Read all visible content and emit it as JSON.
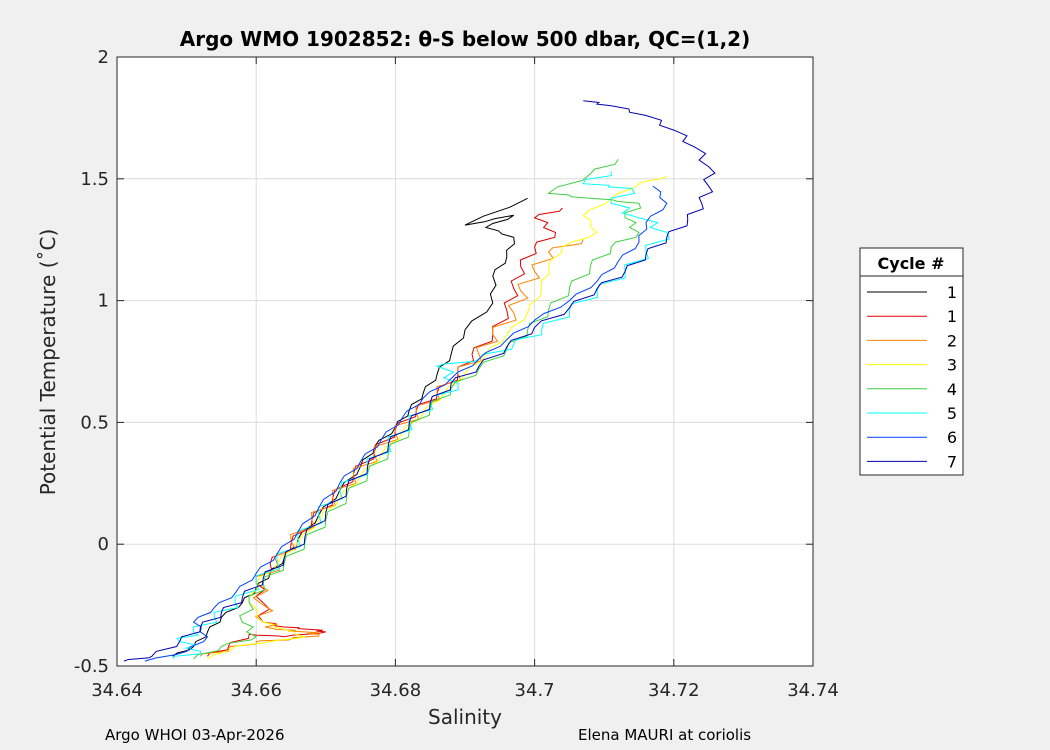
{
  "chart_data": {
    "type": "line",
    "title": "Argo WMO 1902852: θ-S below 500 dbar,  QC=(1,2)",
    "xlabel": "Salinity",
    "ylabel": "Potential Temperature (˚C)",
    "xlim": [
      34.64,
      34.74
    ],
    "ylim": [
      -0.5,
      2
    ],
    "xticks": [
      "34.64",
      "34.66",
      "34.68",
      "34.7",
      "34.72",
      "34.74"
    ],
    "yticks": [
      "-0.5",
      "0",
      "0.5",
      "1",
      "1.5",
      "2"
    ],
    "grid": true,
    "legend": {
      "title": "Cycle #",
      "placement": "right"
    },
    "series": [
      {
        "name": "1",
        "color": "#000000",
        "points": [
          [
            34.699,
            1.42
          ],
          [
            34.69,
            1.31
          ],
          [
            34.697,
            1.35
          ],
          [
            34.693,
            1.3
          ],
          [
            34.697,
            1.26
          ],
          [
            34.696,
            1.18
          ],
          [
            34.694,
            1.1
          ],
          [
            34.694,
            0.99
          ],
          [
            34.69,
            0.88
          ],
          [
            34.688,
            0.78
          ],
          [
            34.686,
            0.7
          ],
          [
            34.684,
            0.62
          ],
          [
            34.682,
            0.55
          ],
          [
            34.68,
            0.48
          ],
          [
            34.677,
            0.4
          ],
          [
            34.675,
            0.32
          ],
          [
            34.672,
            0.22
          ],
          [
            34.669,
            0.12
          ],
          [
            34.666,
            0.02
          ],
          [
            34.664,
            -0.06
          ],
          [
            34.662,
            -0.12
          ],
          [
            34.66,
            -0.18
          ],
          [
            34.658,
            -0.24
          ],
          [
            34.655,
            -0.3
          ],
          [
            34.653,
            -0.36
          ],
          [
            34.651,
            -0.42
          ],
          [
            34.648,
            -0.46
          ]
        ]
      },
      {
        "name": "1",
        "color": "#e00000",
        "points": [
          [
            34.704,
            1.38
          ],
          [
            34.7,
            1.34
          ],
          [
            34.703,
            1.28
          ],
          [
            34.7,
            1.22
          ],
          [
            34.698,
            1.14
          ],
          [
            34.697,
            1.05
          ],
          [
            34.696,
            0.96
          ],
          [
            34.694,
            0.86
          ],
          [
            34.691,
            0.78
          ],
          [
            34.689,
            0.7
          ],
          [
            34.686,
            0.62
          ],
          [
            34.683,
            0.55
          ],
          [
            34.68,
            0.47
          ],
          [
            34.677,
            0.38
          ],
          [
            34.674,
            0.29
          ],
          [
            34.671,
            0.19
          ],
          [
            34.668,
            0.1
          ],
          [
            34.665,
            0.0
          ],
          [
            34.662,
            -0.08
          ],
          [
            34.66,
            -0.16
          ],
          [
            34.661,
            -0.24
          ],
          [
            34.661,
            -0.32
          ],
          [
            34.664,
            -0.34
          ],
          [
            34.668,
            -0.35
          ],
          [
            34.67,
            -0.36
          ],
          [
            34.664,
            -0.38
          ],
          [
            34.659,
            -0.37
          ],
          [
            34.656,
            -0.42
          ],
          [
            34.653,
            -0.46
          ]
        ]
      },
      {
        "name": "2",
        "color": "#ff8000",
        "points": [
          [
            34.707,
            1.25
          ],
          [
            34.702,
            1.2
          ],
          [
            34.7,
            1.12
          ],
          [
            34.698,
            1.04
          ],
          [
            34.697,
            0.95
          ],
          [
            34.694,
            0.86
          ],
          [
            34.692,
            0.78
          ],
          [
            34.689,
            0.7
          ],
          [
            34.686,
            0.62
          ],
          [
            34.683,
            0.54
          ],
          [
            34.68,
            0.46
          ],
          [
            34.677,
            0.37
          ],
          [
            34.674,
            0.28
          ],
          [
            34.671,
            0.19
          ],
          [
            34.668,
            0.1
          ],
          [
            34.665,
            0.01
          ],
          [
            34.663,
            -0.08
          ],
          [
            34.66,
            -0.16
          ],
          [
            34.661,
            -0.25
          ],
          [
            34.661,
            -0.32
          ],
          [
            34.663,
            -0.35
          ],
          [
            34.667,
            -0.36
          ],
          [
            34.669,
            -0.37
          ],
          [
            34.665,
            -0.39
          ],
          [
            34.66,
            -0.4
          ],
          [
            34.656,
            -0.43
          ],
          [
            34.652,
            -0.46
          ]
        ]
      },
      {
        "name": "3",
        "color": "#ffff00",
        "points": [
          [
            34.719,
            1.51
          ],
          [
            34.715,
            1.48
          ],
          [
            34.711,
            1.42
          ],
          [
            34.707,
            1.35
          ],
          [
            34.709,
            1.28
          ],
          [
            34.704,
            1.22
          ],
          [
            34.702,
            1.14
          ],
          [
            34.701,
            1.05
          ],
          [
            34.699,
            0.95
          ],
          [
            34.696,
            0.86
          ],
          [
            34.693,
            0.78
          ],
          [
            34.69,
            0.7
          ],
          [
            34.687,
            0.62
          ],
          [
            34.684,
            0.54
          ],
          [
            34.681,
            0.46
          ],
          [
            34.678,
            0.37
          ],
          [
            34.675,
            0.28
          ],
          [
            34.672,
            0.19
          ],
          [
            34.669,
            0.1
          ],
          [
            34.666,
            0.01
          ],
          [
            34.663,
            -0.08
          ],
          [
            34.66,
            -0.16
          ],
          [
            34.659,
            -0.24
          ],
          [
            34.661,
            -0.32
          ],
          [
            34.664,
            -0.35
          ],
          [
            34.667,
            -0.38
          ],
          [
            34.662,
            -0.4
          ],
          [
            34.657,
            -0.42
          ],
          [
            34.653,
            -0.47
          ]
        ]
      },
      {
        "name": "4",
        "color": "#40d040",
        "points": [
          [
            34.712,
            1.58
          ],
          [
            34.708,
            1.52
          ],
          [
            34.702,
            1.44
          ],
          [
            34.708,
            1.42
          ],
          [
            34.715,
            1.4
          ],
          [
            34.713,
            1.34
          ],
          [
            34.715,
            1.28
          ],
          [
            34.711,
            1.22
          ],
          [
            34.708,
            1.14
          ],
          [
            34.705,
            1.05
          ],
          [
            34.702,
            0.96
          ],
          [
            34.699,
            0.88
          ],
          [
            34.696,
            0.8
          ],
          [
            34.692,
            0.72
          ],
          [
            34.688,
            0.64
          ],
          [
            34.685,
            0.56
          ],
          [
            34.682,
            0.47
          ],
          [
            34.679,
            0.38
          ],
          [
            34.676,
            0.29
          ],
          [
            34.673,
            0.2
          ],
          [
            34.67,
            0.1
          ],
          [
            34.667,
            0.01
          ],
          [
            34.664,
            -0.08
          ],
          [
            34.661,
            -0.16
          ],
          [
            34.659,
            -0.24
          ],
          [
            34.658,
            -0.32
          ],
          [
            34.66,
            -0.38
          ],
          [
            34.655,
            -0.42
          ],
          [
            34.651,
            -0.47
          ]
        ]
      },
      {
        "name": "5",
        "color": "#00ffff",
        "points": [
          [
            34.711,
            1.53
          ],
          [
            34.707,
            1.48
          ],
          [
            34.714,
            1.46
          ],
          [
            34.711,
            1.4
          ],
          [
            34.715,
            1.34
          ],
          [
            34.719,
            1.28
          ],
          [
            34.716,
            1.2
          ],
          [
            34.713,
            1.12
          ],
          [
            34.709,
            1.04
          ],
          [
            34.705,
            0.96
          ],
          [
            34.701,
            0.88
          ],
          [
            34.697,
            0.82
          ],
          [
            34.692,
            0.76
          ],
          [
            34.686,
            0.73
          ],
          [
            34.689,
            0.66
          ],
          [
            34.685,
            0.58
          ],
          [
            34.682,
            0.5
          ],
          [
            34.679,
            0.41
          ],
          [
            34.676,
            0.32
          ],
          [
            34.672,
            0.22
          ],
          [
            34.669,
            0.12
          ],
          [
            34.666,
            0.02
          ],
          [
            34.663,
            -0.07
          ],
          [
            34.66,
            -0.16
          ],
          [
            34.657,
            -0.24
          ],
          [
            34.654,
            -0.3
          ],
          [
            34.651,
            -0.36
          ],
          [
            34.649,
            -0.4
          ],
          [
            34.652,
            -0.44
          ],
          [
            34.648,
            -0.47
          ]
        ]
      },
      {
        "name": "6",
        "color": "#0040ff",
        "points": [
          [
            34.717,
            1.47
          ],
          [
            34.719,
            1.4
          ],
          [
            34.716,
            1.32
          ],
          [
            34.715,
            1.24
          ],
          [
            34.712,
            1.16
          ],
          [
            34.709,
            1.08
          ],
          [
            34.705,
            1.0
          ],
          [
            34.7,
            0.92
          ],
          [
            34.696,
            0.84
          ],
          [
            34.692,
            0.76
          ],
          [
            34.688,
            0.68
          ],
          [
            34.684,
            0.6
          ],
          [
            34.681,
            0.52
          ],
          [
            34.678,
            0.43
          ],
          [
            34.675,
            0.34
          ],
          [
            34.672,
            0.25
          ],
          [
            34.669,
            0.15
          ],
          [
            34.666,
            0.05
          ],
          [
            34.663,
            -0.04
          ],
          [
            34.66,
            -0.12
          ],
          [
            34.657,
            -0.2
          ],
          [
            34.654,
            -0.26
          ],
          [
            34.651,
            -0.32
          ],
          [
            34.653,
            -0.38
          ],
          [
            34.65,
            -0.44
          ],
          [
            34.644,
            -0.48
          ]
        ]
      },
      {
        "name": "7",
        "color": "#0000b0",
        "points": [
          [
            34.707,
            1.82
          ],
          [
            34.711,
            1.8
          ],
          [
            34.716,
            1.76
          ],
          [
            34.72,
            1.7
          ],
          [
            34.723,
            1.63
          ],
          [
            34.725,
            1.55
          ],
          [
            34.725,
            1.47
          ],
          [
            34.724,
            1.4
          ],
          [
            34.722,
            1.33
          ],
          [
            34.719,
            1.26
          ],
          [
            34.716,
            1.19
          ],
          [
            34.713,
            1.12
          ],
          [
            34.709,
            1.05
          ],
          [
            34.705,
            0.97
          ],
          [
            34.7,
            0.89
          ],
          [
            34.696,
            0.81
          ],
          [
            34.692,
            0.73
          ],
          [
            34.688,
            0.66
          ],
          [
            34.685,
            0.58
          ],
          [
            34.682,
            0.5
          ],
          [
            34.679,
            0.41
          ],
          [
            34.676,
            0.32
          ],
          [
            34.673,
            0.23
          ],
          [
            34.67,
            0.13
          ],
          [
            34.667,
            0.03
          ],
          [
            34.664,
            -0.06
          ],
          [
            34.661,
            -0.14
          ],
          [
            34.658,
            -0.22
          ],
          [
            34.655,
            -0.28
          ],
          [
            34.652,
            -0.34
          ],
          [
            34.649,
            -0.4
          ],
          [
            34.645,
            -0.46
          ],
          [
            34.641,
            -0.48
          ]
        ]
      }
    ]
  },
  "footer": {
    "left": "Argo WHOI 03-Apr-2026",
    "right": "Elena MAURI at coriolis"
  }
}
